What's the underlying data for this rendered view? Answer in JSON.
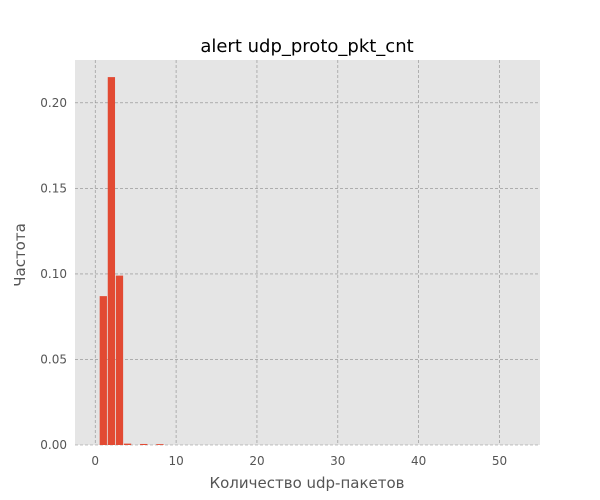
{
  "chart_data": {
    "type": "bar",
    "title": "alert udp_proto_pkt_cnt",
    "xlabel": "Количество udp-пакетов",
    "ylabel": "Частота",
    "xlim": [
      -2.5,
      55
    ],
    "ylim": [
      0,
      0.225
    ],
    "x_ticks": [
      0,
      10,
      20,
      30,
      40,
      50
    ],
    "y_ticks": [
      0.0,
      0.05,
      0.1,
      0.15,
      0.2
    ],
    "x_tick_labels": [
      "0",
      "10",
      "20",
      "30",
      "40",
      "50"
    ],
    "y_tick_labels": [
      "0.00",
      "0.05",
      "0.10",
      "0.15",
      "0.20"
    ],
    "grid": true,
    "bar_color": "#e24a33",
    "background_color": "#e5e5e5",
    "bars": [
      {
        "x": 1,
        "value": 0.087
      },
      {
        "x": 2,
        "value": 0.215
      },
      {
        "x": 3,
        "value": 0.099
      },
      {
        "x": 4,
        "value": 0.0008
      },
      {
        "x": 6,
        "value": 0.0006
      },
      {
        "x": 8,
        "value": 0.0005
      }
    ]
  }
}
